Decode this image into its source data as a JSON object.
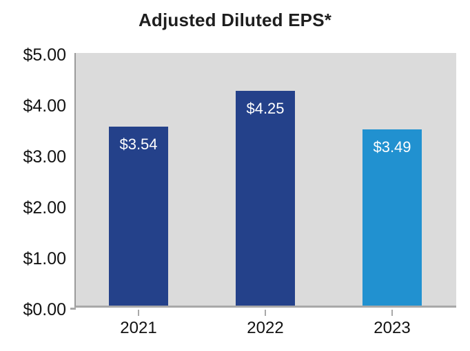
{
  "chart_data": {
    "type": "bar",
    "title": "Adjusted Diluted EPS*",
    "categories": [
      "2021",
      "2022",
      "2023"
    ],
    "values": [
      3.54,
      4.25,
      3.49
    ],
    "value_labels": [
      "$3.54",
      "$4.25",
      "$3.49"
    ],
    "bar_colors": [
      "#24418a",
      "#24418a",
      "#2191d0"
    ],
    "y_ticks": [
      "$5.00",
      "$4.00",
      "$3.00",
      "$2.00",
      "$1.00",
      "$0.00"
    ],
    "y_tick_values": [
      5,
      4,
      3,
      2,
      1,
      0
    ],
    "ylim": [
      0,
      5
    ],
    "xlabel": "",
    "ylabel": "",
    "grid": false,
    "legend": false,
    "plot_bg": "#dbdbdb",
    "axis_color": "#a8a8a8",
    "value_label_color": "#ffffff"
  }
}
